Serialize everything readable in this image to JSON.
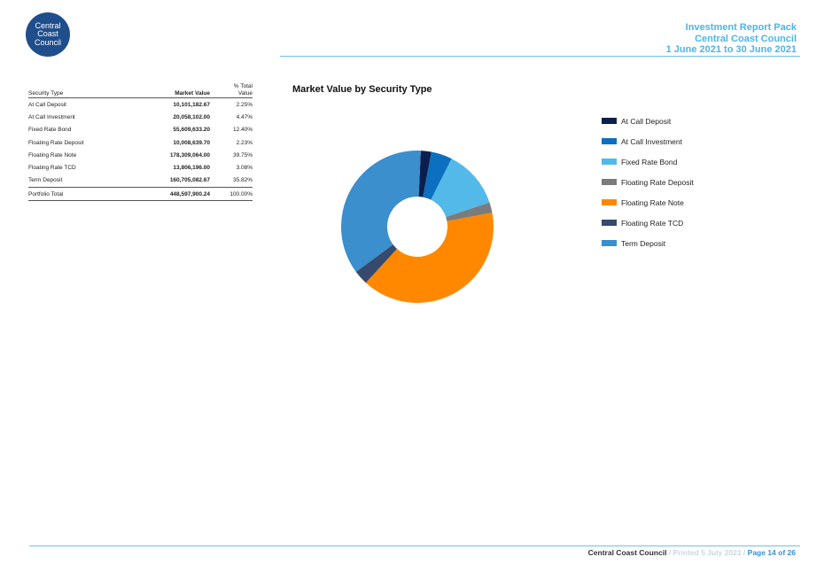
{
  "logo": {
    "line1": "Central",
    "line2": "Coast",
    "line3": "Council"
  },
  "report_header": {
    "title": "Investment Report Pack",
    "org": "Central Coast Council",
    "period": "1 June 2021 to 30 June 2021"
  },
  "table": {
    "headers": {
      "security_type": "Security Type",
      "market_value": "Market Value",
      "pct_line1": "% Total",
      "pct_line2": "Value"
    },
    "rows": [
      {
        "type": "At Call Deposit",
        "value": "10,101,182.67",
        "pct": "2.25%"
      },
      {
        "type": "At Call Investment",
        "value": "20,058,102.00",
        "pct": "4.47%"
      },
      {
        "type": "Fixed Rate Bond",
        "value": "55,609,633.20",
        "pct": "12.40%"
      },
      {
        "type": "Floating Rate Deposit",
        "value": "10,008,639.70",
        "pct": "2.23%"
      },
      {
        "type": "Floating Rate Note",
        "value": "178,309,064.00",
        "pct": "39.75%"
      },
      {
        "type": "Floating Rate TCD",
        "value": "13,806,196.00",
        "pct": "3.08%"
      },
      {
        "type": "Term Deposit",
        "value": "160,705,082.67",
        "pct": "35.82%"
      }
    ],
    "total": {
      "type": "Portfolio Total",
      "value": "448,597,900.24",
      "pct": "100.00%"
    }
  },
  "chart_data": {
    "type": "pie",
    "title": "Market Value by Security Type",
    "donut": true,
    "legend_position": "right",
    "categories": [
      "At Call Deposit",
      "At Call Investment",
      "Fixed Rate Bond",
      "Floating Rate Deposit",
      "Floating Rate Note",
      "Floating Rate TCD",
      "Term Deposit"
    ],
    "values": [
      2.25,
      4.47,
      12.4,
      2.23,
      39.75,
      3.08,
      35.82
    ],
    "colors": [
      "#0b1f4f",
      "#0d6fbf",
      "#53b9e9",
      "#7b7b7b",
      "#ff8800",
      "#364a6e",
      "#3a8fcc"
    ]
  },
  "footer": {
    "org": "Central Coast Council",
    "sep1": " / ",
    "printed": "Printed 5 July 2021",
    "sep2": " / ",
    "page": "Page 14 of 26"
  }
}
